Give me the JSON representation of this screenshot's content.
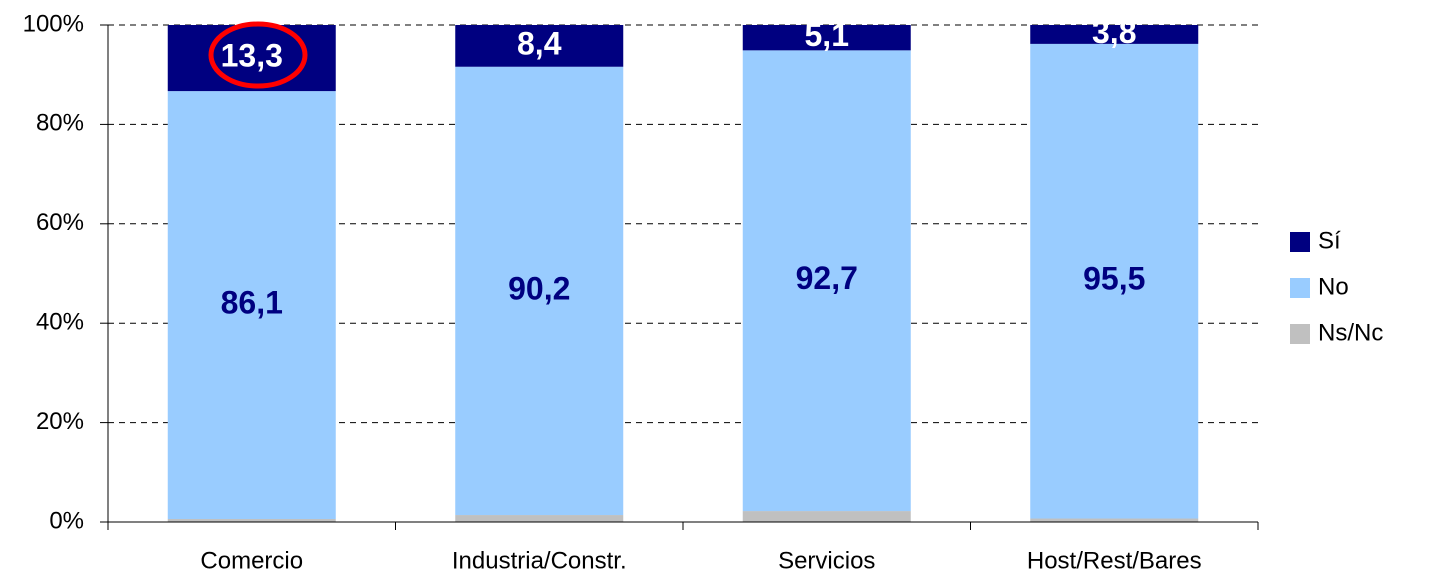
{
  "chart_data": {
    "type": "stacked_bar",
    "categories": [
      "Comercio",
      "Industria/Constr.",
      "Servicios",
      "Host/Rest/Bares"
    ],
    "series": [
      {
        "name": "Sí",
        "color": "#000080",
        "values": [
          13.3,
          8.4,
          5.1,
          3.8
        ],
        "value_labels": [
          "13,3",
          "8,4",
          "5,1",
          "3,8"
        ],
        "label_color": "#ffffff"
      },
      {
        "name": "No",
        "color": "#99ccff",
        "values": [
          86.1,
          90.2,
          92.7,
          95.5
        ],
        "value_labels": [
          "86,1",
          "90,2",
          "92,7",
          "95,5"
        ],
        "label_color": "#000080"
      },
      {
        "name": "Ns/Nc",
        "color": "#c0c0c0",
        "values": [
          0.6,
          1.4,
          2.2,
          0.7
        ]
      }
    ],
    "ylim": [
      0,
      100
    ],
    "yticks": [
      {
        "value": 0,
        "label": "0%"
      },
      {
        "value": 20,
        "label": "20%"
      },
      {
        "value": 40,
        "label": "40%"
      },
      {
        "value": 60,
        "label": "60%"
      },
      {
        "value": 80,
        "label": "80%"
      },
      {
        "value": 100,
        "label": "100%"
      }
    ],
    "grid": true,
    "legend": "right"
  }
}
